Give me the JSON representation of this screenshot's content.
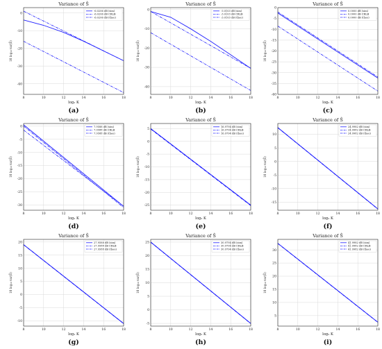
{
  "figure": {
    "background": "#ffffff",
    "line_color": "#1f1fff"
  },
  "chart_data": [
    {
      "type": "line",
      "caption": "(a)",
      "title": "Variance of Ŝ",
      "xlabel": "log₂ K",
      "ylabel": "10 log₁₀ var(Ŝ)",
      "xlim": [
        8,
        18
      ],
      "ylim": [
        -46,
        3
      ],
      "xticks": [
        8,
        10,
        12,
        14,
        16,
        18
      ],
      "yticks": [
        0,
        -10,
        -20,
        -30,
        -40
      ],
      "legend": [
        "-6.0206 dB (sim)",
        "-6.0206 dB CRLB",
        "-6.0206 dB (theo)"
      ],
      "series": [
        {
          "name": "-6.0206 dB (sim)",
          "style": "solid",
          "x": [
            8,
            10,
            12,
            14,
            16,
            18
          ],
          "y": [
            -4,
            -7,
            -11,
            -16,
            -21.5,
            -27
          ]
        },
        {
          "name": "-6.0206 dB CRLB",
          "style": "dashdot",
          "x": [
            8,
            18
          ],
          "y": [
            1,
            -27
          ]
        },
        {
          "name": "-6.0206 dB (theo)",
          "style": "dashdot",
          "x": [
            8,
            18
          ],
          "y": [
            -16,
            -45
          ]
        }
      ]
    },
    {
      "type": "line",
      "caption": "(b)",
      "title": "Variance of Ŝ",
      "xlabel": "log₂ K",
      "ylabel": "10 log₁₀ var(Ŝ)",
      "xlim": [
        8,
        18
      ],
      "ylim": [
        -44,
        1
      ],
      "xticks": [
        8,
        10,
        12,
        14,
        16,
        18
      ],
      "yticks": [
        0,
        -10,
        -20,
        -30,
        -40
      ],
      "legend": [
        "-3.0103 dB (sim)",
        "-3.0103 dB CRLB",
        "-3.0103 dB (theo)"
      ],
      "series": [
        {
          "name": "-3.0103 dB (sim)",
          "style": "solid",
          "x": [
            8,
            10,
            12,
            14,
            16,
            18
          ],
          "y": [
            -1,
            -4,
            -10,
            -16.5,
            -23.5,
            -30.5
          ]
        },
        {
          "name": "-3.0103 dB CRLB",
          "style": "dashdot",
          "x": [
            8,
            18
          ],
          "y": [
            -1,
            -30.5
          ]
        },
        {
          "name": "-3.0103 dB (theo)",
          "style": "dashdot",
          "x": [
            8,
            18
          ],
          "y": [
            -12,
            -42
          ]
        }
      ]
    },
    {
      "type": "line",
      "caption": "(c)",
      "title": "Variance of Ŝ",
      "xlabel": "log₂ K",
      "ylabel": "10 log₁₀ var(Ŝ)",
      "xlim": [
        8,
        18
      ],
      "ylim": [
        -40,
        0
      ],
      "xticks": [
        8,
        10,
        12,
        14,
        16,
        18
      ],
      "yticks": [
        0,
        -5,
        -10,
        -15,
        -20,
        -25,
        -30,
        -35,
        -40
      ],
      "legend": [
        "0.0000 dB (sim)",
        "0.0000 dB CRLB",
        "0.0000 dB (theo)"
      ],
      "series": [
        {
          "name": "0.0000 dB (sim)",
          "style": "solid",
          "x": [
            8,
            18
          ],
          "y": [
            -2.5,
            -32.5
          ]
        },
        {
          "name": "0.0000 dB CRLB",
          "style": "dashdot",
          "x": [
            8,
            18
          ],
          "y": [
            -2,
            -32
          ]
        },
        {
          "name": "0.0000 dB (theo)",
          "style": "dashdot",
          "x": [
            8,
            18
          ],
          "y": [
            -8.5,
            -38.5
          ]
        }
      ]
    },
    {
      "type": "line",
      "caption": "(d)",
      "title": "Variance of Ŝ",
      "xlabel": "log₂ K",
      "ylabel": "10 log₁₀ var(Ŝ)",
      "xlim": [
        8,
        18
      ],
      "ylim": [
        -32,
        1
      ],
      "xticks": [
        8,
        10,
        12,
        14,
        16,
        18
      ],
      "yticks": [
        0,
        -5,
        -10,
        -15,
        -20,
        -25,
        -30
      ],
      "legend": [
        "7.9588 dB (sim)",
        "7.9588 dB CRLB",
        "7.9588 dB (theo)"
      ],
      "series": [
        {
          "name": "7.9588 dB (sim)",
          "style": "solid",
          "x": [
            8,
            18
          ],
          "y": [
            0.5,
            -30.5
          ]
        },
        {
          "name": "7.9588 dB CRLB",
          "style": "dashdot",
          "x": [
            8,
            18
          ],
          "y": [
            0,
            -31
          ]
        },
        {
          "name": "7.9588 dB (theo)",
          "style": "dashdot",
          "x": [
            8,
            18
          ],
          "y": [
            -1.5,
            -30.5
          ]
        }
      ]
    },
    {
      "type": "line",
      "caption": "(e)",
      "title": "Variance of Ŝ",
      "xlabel": "log₂ K",
      "ylabel": "10 log₁₀ var(Ŝ)",
      "xlim": [
        8,
        18
      ],
      "ylim": [
        -27,
        7
      ],
      "xticks": [
        8,
        10,
        12,
        14,
        16,
        18
      ],
      "yticks": [
        5,
        0,
        -5,
        -10,
        -15,
        -20,
        -25
      ],
      "legend": [
        "16.9794 dB (sim)",
        "16.9794 dB CRLB",
        "16.9794 dB (theo)"
      ],
      "series": [
        {
          "name": "16.9794 dB (sim)",
          "style": "solid",
          "x": [
            8,
            18
          ],
          "y": [
            5,
            -25
          ]
        },
        {
          "name": "16.9794 dB CRLB",
          "style": "dashdot",
          "x": [
            8,
            18
          ],
          "y": [
            5,
            -25
          ]
        },
        {
          "name": "16.9794 dB (theo)",
          "style": "dashdot",
          "x": [
            8,
            18
          ],
          "y": [
            4.8,
            -25.2
          ]
        }
      ]
    },
    {
      "type": "line",
      "caption": "(f)",
      "title": "Variance of Ŝ",
      "xlabel": "log₂ K",
      "ylabel": "10 log₁₀ var(Ŝ)",
      "xlim": [
        8,
        18
      ],
      "ylim": [
        -18,
        14
      ],
      "xticks": [
        8,
        10,
        12,
        14,
        16,
        18
      ],
      "yticks": [
        10,
        5,
        0,
        -5,
        -10,
        -15
      ],
      "legend": [
        "24.9982 dB (sim)",
        "24.9982 dB CRLB",
        "24.9982 dB (theo)"
      ],
      "series": [
        {
          "name": "24.9982 dB (sim)",
          "style": "solid",
          "x": [
            8,
            18
          ],
          "y": [
            12.5,
            -17.5
          ]
        },
        {
          "name": "24.9982 dB CRLB",
          "style": "dashdot",
          "x": [
            8,
            18
          ],
          "y": [
            12.5,
            -17.5
          ]
        },
        {
          "name": "24.9982 dB (theo)",
          "style": "dashdot",
          "x": [
            8,
            18
          ],
          "y": [
            12.4,
            -17.6
          ]
        }
      ]
    },
    {
      "type": "line",
      "caption": "(g)",
      "title": "Variance of Ŝ",
      "xlabel": "log₂ K",
      "ylabel": "10 log₁₀ var(Ŝ)",
      "xlim": [
        8,
        18
      ],
      "ylim": [
        -12,
        21
      ],
      "xticks": [
        8,
        10,
        12,
        14,
        16,
        18
      ],
      "yticks": [
        20,
        15,
        10,
        5,
        0,
        -5,
        -10
      ],
      "legend": [
        "27.9588 dB (sim)",
        "27.9588 dB CRLB",
        "27.9588 dB (theo)"
      ],
      "series": [
        {
          "name": "27.9588 dB (sim)",
          "style": "solid",
          "x": [
            8,
            18
          ],
          "y": [
            19,
            -11
          ]
        },
        {
          "name": "27.9588 dB CRLB",
          "style": "dashdot",
          "x": [
            8,
            18
          ],
          "y": [
            19,
            -11
          ]
        },
        {
          "name": "27.9588 dB (theo)",
          "style": "dashdot",
          "x": [
            8,
            18
          ],
          "y": [
            18.9,
            -11.1
          ]
        }
      ]
    },
    {
      "type": "line",
      "caption": "(h)",
      "title": "Variance of Ŝ",
      "xlabel": "log₂ K",
      "ylabel": "10 log₁₀ var(Ŝ)",
      "xlim": [
        8,
        18
      ],
      "ylim": [
        -6,
        26
      ],
      "xticks": [
        8,
        10,
        12,
        14,
        16,
        18
      ],
      "yticks": [
        25,
        20,
        15,
        10,
        5,
        0,
        -5
      ],
      "legend": [
        "30.9794 dB (sim)",
        "30.9794 dB CRLB",
        "30.9794 dB (theo)"
      ],
      "series": [
        {
          "name": "30.9794 dB (sim)",
          "style": "solid",
          "x": [
            8,
            18
          ],
          "y": [
            25,
            -5
          ]
        },
        {
          "name": "30.9794 dB CRLB",
          "style": "dashdot",
          "x": [
            8,
            18
          ],
          "y": [
            25,
            -5
          ]
        },
        {
          "name": "30.9794 dB (theo)",
          "style": "dashdot",
          "x": [
            8,
            18
          ],
          "y": [
            24.9,
            -5.1
          ]
        }
      ]
    },
    {
      "type": "line",
      "caption": "(i)",
      "title": "Variance of Ŝ",
      "xlabel": "log₂ K",
      "ylabel": "10 log₁₀ var(Ŝ)",
      "xlim": [
        8,
        18
      ],
      "ylim": [
        1,
        34
      ],
      "xticks": [
        8,
        10,
        12,
        14,
        16,
        18
      ],
      "yticks": [
        30,
        25,
        20,
        15,
        10,
        5
      ],
      "legend": [
        "41.9982 dB (sim)",
        "41.9982 dB CRLB",
        "41.9982 dB (theo)"
      ],
      "series": [
        {
          "name": "41.9982 dB (sim)",
          "style": "solid",
          "x": [
            8,
            18
          ],
          "y": [
            32.5,
            2.5
          ]
        },
        {
          "name": "41.9982 dB CRLB",
          "style": "dashdot",
          "x": [
            8,
            18
          ],
          "y": [
            32.5,
            2.5
          ]
        },
        {
          "name": "41.9982 dB (theo)",
          "style": "dashdot",
          "x": [
            8,
            18
          ],
          "y": [
            32.4,
            2.4
          ]
        }
      ]
    }
  ]
}
